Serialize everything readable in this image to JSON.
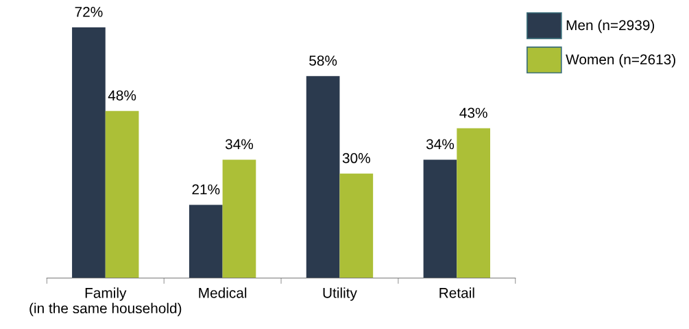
{
  "chart_data": {
    "type": "bar",
    "categories": [
      "Family\n(in the same household)",
      "Medical",
      "Utility",
      "Retail"
    ],
    "series": [
      {
        "name": "Men (n=2939)",
        "color": "#2b3a4e",
        "values": [
          72,
          21,
          58,
          34
        ],
        "value_labels": [
          "72%",
          "21%",
          "58%",
          "34%"
        ]
      },
      {
        "name": "Women (n=2613)",
        "color": "#acbf37",
        "values": [
          48,
          34,
          30,
          43
        ],
        "value_labels": [
          "48%",
          "34%",
          "30%",
          "43%"
        ]
      }
    ],
    "legend": "top right",
    "grid": false
  }
}
